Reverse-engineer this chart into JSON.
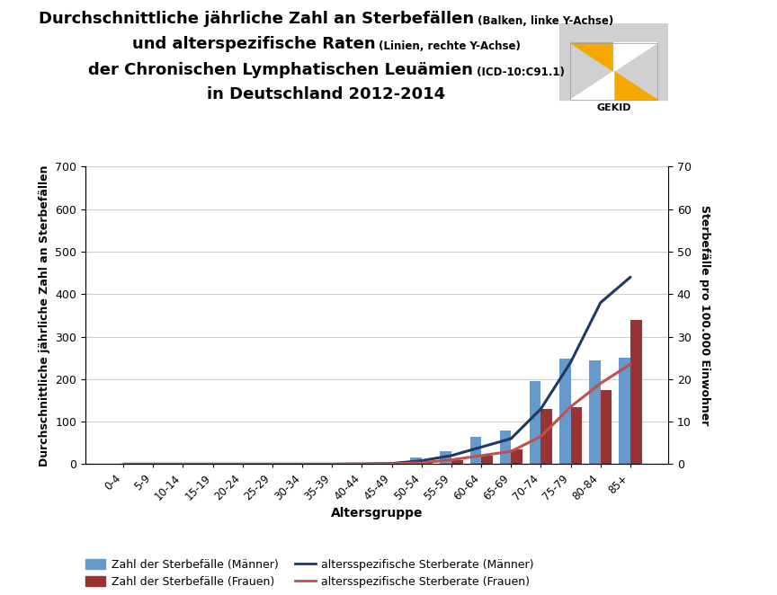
{
  "age_groups": [
    "0-4",
    "5-9",
    "10-14",
    "15-19",
    "20-24",
    "25-29",
    "30-34",
    "35-39",
    "40-44",
    "45-49",
    "50-54",
    "55-59",
    "60-64",
    "65-69",
    "70-74",
    "75-79",
    "80-84",
    "85+"
  ],
  "maenner_bars": [
    0,
    0,
    0,
    0,
    0,
    0,
    0,
    0,
    0,
    2,
    15,
    30,
    65,
    80,
    195,
    248,
    243,
    250
  ],
  "frauen_bars": [
    0,
    0,
    0,
    0,
    0,
    0,
    0,
    0,
    0,
    0,
    3,
    10,
    20,
    35,
    130,
    133,
    175,
    340
  ],
  "maenner_rate": [
    0,
    0,
    0,
    0,
    0,
    0,
    0,
    0,
    0.05,
    0.15,
    0.8,
    2.0,
    4.0,
    6.0,
    13.0,
    24.0,
    38.0,
    44.0
  ],
  "frauen_rate": [
    0,
    0,
    0,
    0,
    0,
    0,
    0,
    0,
    0.02,
    0.08,
    0.3,
    1.0,
    2.0,
    3.0,
    6.5,
    13.5,
    19.0,
    23.5
  ],
  "bar_color_maenner": "#6699CC",
  "bar_color_frauen": "#993333",
  "line_color_maenner": "#1f3864",
  "line_color_frauen": "#C0504D",
  "ylim_left": [
    0,
    700
  ],
  "ylim_right": [
    0,
    70
  ],
  "yticks_left": [
    0,
    100,
    200,
    300,
    400,
    500,
    600,
    700
  ],
  "yticks_right": [
    0,
    10,
    20,
    30,
    40,
    50,
    60,
    70
  ],
  "xlabel": "Altersgruppe",
  "ylabel_left": "Durchschnittliche jährliche Zahl an Sterbefällen",
  "ylabel_right": "Sterbefälle pro 100.000 Einwohner",
  "legend_bar_maenner": "Zahl der Sterbefälle (Männer)",
  "legend_bar_frauen": "Zahl der Sterbefälle (Frauen)",
  "legend_line_maenner": "altersspezifische Sterberate (Männer)",
  "legend_line_frauen": "altersspezifische Sterberate (Frauen)",
  "background_color": "#ffffff",
  "grid_color": "#cccccc",
  "title_l1_big": "Durchschnittliche jährliche Zahl an Sterbefällen",
  "title_l1_small": " (Balken, linke Y-Achse)",
  "title_l2_big": "und alterspezifische Raten",
  "title_l2_small": " (Linien, rechte Y-Achse)",
  "title_l3_big": "der Chronischen Lymphatischen Leuämien",
  "title_l3_small": " (ICD-10:C91.1)",
  "title_l4": "in Deutschland 2012-2014"
}
